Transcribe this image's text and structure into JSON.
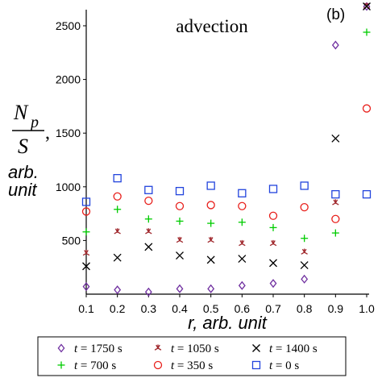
{
  "chart_data": {
    "type": "scatter",
    "title": "advection",
    "panel_label": "(b)",
    "ylabel": {
      "N": "N",
      "sub": "p",
      "S": "S",
      "comma": ",",
      "line1": "arb.",
      "line2": "unit"
    },
    "xlabel": {
      "r": "r",
      "rest": ", arb. unit"
    },
    "xlim": [
      0.1,
      1.0
    ],
    "ylim": [
      0,
      2650
    ],
    "x_ticks": [
      "0.1",
      "0.2",
      "0.3",
      "0.4",
      "0.5",
      "0.6",
      "0.7",
      "0.8",
      "0.9",
      "1.0"
    ],
    "y_ticks": [
      "500",
      "1000",
      "1500",
      "2000",
      "2500"
    ],
    "legend_position": "bottom",
    "series": [
      {
        "name": "t = 1750 s",
        "t": "t",
        "label_rest": " = 1750 s",
        "marker": "diamond",
        "color": "#7030a0",
        "x": [
          0.1,
          0.2,
          0.3,
          0.4,
          0.5,
          0.6,
          0.7,
          0.8,
          0.9,
          1.0
        ],
        "y": [
          70,
          40,
          20,
          50,
          50,
          80,
          100,
          140,
          2320,
          2680
        ]
      },
      {
        "name": "t = 1050 s",
        "t": "t",
        "label_rest": " = 1050 s",
        "marker": "star",
        "color": "#a0282d",
        "x": [
          0.1,
          0.2,
          0.3,
          0.4,
          0.5,
          0.6,
          0.7,
          0.8,
          0.9,
          1.0
        ],
        "y": [
          380,
          580,
          580,
          500,
          500,
          470,
          470,
          390,
          850,
          2680
        ]
      },
      {
        "name": "t = 1400 s",
        "t": "t",
        "label_rest": " = 1400 s",
        "marker": "x",
        "color": "#000000",
        "x": [
          0.1,
          0.2,
          0.3,
          0.4,
          0.5,
          0.6,
          0.7,
          0.8,
          0.9,
          1.0
        ],
        "y": [
          260,
          340,
          440,
          360,
          320,
          330,
          290,
          270,
          1450,
          2680
        ]
      },
      {
        "name": "t = 700 s",
        "t": "t",
        "label_rest": " = 700 s",
        "marker": "plus",
        "color": "#00cc00",
        "x": [
          0.1,
          0.2,
          0.3,
          0.4,
          0.5,
          0.6,
          0.7,
          0.8,
          0.9,
          1.0
        ],
        "y": [
          580,
          790,
          700,
          680,
          660,
          670,
          620,
          520,
          570,
          2440
        ]
      },
      {
        "name": "t = 350 s",
        "t": "t",
        "label_rest": " = 350 s",
        "marker": "circle",
        "color": "#e8201c",
        "x": [
          0.1,
          0.2,
          0.3,
          0.4,
          0.5,
          0.6,
          0.7,
          0.8,
          0.9,
          1.0
        ],
        "y": [
          770,
          910,
          870,
          820,
          830,
          820,
          730,
          810,
          700,
          1730
        ]
      },
      {
        "name": "t = 0 s",
        "t": "t",
        "label_rest": " = 0 s",
        "marker": "square",
        "color": "#2244dd",
        "x": [
          0.1,
          0.2,
          0.3,
          0.4,
          0.5,
          0.6,
          0.7,
          0.8,
          0.9,
          1.0
        ],
        "y": [
          860,
          1080,
          970,
          960,
          1010,
          940,
          980,
          1010,
          930,
          930
        ]
      }
    ]
  }
}
